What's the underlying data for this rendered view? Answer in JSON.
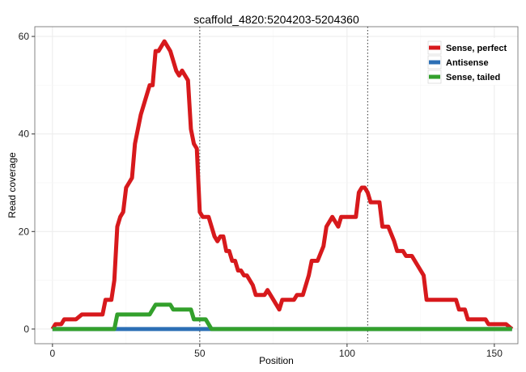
{
  "chart_data": {
    "type": "line",
    "title": "scaffold_4820:5204203-5204360",
    "xlabel": "Position",
    "ylabel": "Read coverage",
    "xlim": [
      -6,
      158
    ],
    "ylim": [
      -3,
      62
    ],
    "xticks": [
      0,
      50,
      100,
      150
    ],
    "yticks": [
      0,
      20,
      40,
      60
    ],
    "grid": true,
    "legend_position": "top-right",
    "vlines": [
      50,
      107
    ],
    "series": [
      {
        "name": "Sense, perfect",
        "color": "#d7191c",
        "points": [
          [
            0,
            0
          ],
          [
            1,
            1
          ],
          [
            3,
            1
          ],
          [
            4,
            2
          ],
          [
            8,
            2
          ],
          [
            10,
            3
          ],
          [
            17,
            3
          ],
          [
            18,
            6
          ],
          [
            20,
            6
          ],
          [
            21,
            10
          ],
          [
            22,
            21
          ],
          [
            23,
            23
          ],
          [
            24,
            24
          ],
          [
            25,
            29
          ],
          [
            26,
            30
          ],
          [
            27,
            31
          ],
          [
            28,
            38
          ],
          [
            30,
            44
          ],
          [
            31,
            46
          ],
          [
            33,
            50
          ],
          [
            34,
            50
          ],
          [
            35,
            57
          ],
          [
            36,
            57
          ],
          [
            38,
            59
          ],
          [
            40,
            57
          ],
          [
            42,
            53
          ],
          [
            43,
            52
          ],
          [
            44,
            53
          ],
          [
            46,
            51
          ],
          [
            47,
            41
          ],
          [
            48,
            38
          ],
          [
            49,
            37
          ],
          [
            50,
            24
          ],
          [
            51,
            23
          ],
          [
            53,
            23
          ],
          [
            55,
            19
          ],
          [
            56,
            18
          ],
          [
            57,
            19
          ],
          [
            58,
            19
          ],
          [
            59,
            16
          ],
          [
            60,
            16
          ],
          [
            61,
            14
          ],
          [
            62,
            14
          ],
          [
            63,
            12
          ],
          [
            64,
            12
          ],
          [
            65,
            11
          ],
          [
            66,
            11
          ],
          [
            68,
            9
          ],
          [
            69,
            7
          ],
          [
            72,
            7
          ],
          [
            73,
            8
          ],
          [
            75,
            6
          ],
          [
            77,
            4
          ],
          [
            78,
            6
          ],
          [
            82,
            6
          ],
          [
            83,
            7
          ],
          [
            85,
            7
          ],
          [
            87,
            11
          ],
          [
            88,
            14
          ],
          [
            90,
            14
          ],
          [
            92,
            17
          ],
          [
            93,
            21
          ],
          [
            95,
            23
          ],
          [
            97,
            21
          ],
          [
            98,
            23
          ],
          [
            103,
            23
          ],
          [
            104,
            28
          ],
          [
            105,
            29
          ],
          [
            106,
            29
          ],
          [
            107,
            28
          ],
          [
            108,
            26
          ],
          [
            111,
            26
          ],
          [
            112,
            21
          ],
          [
            114,
            21
          ],
          [
            116,
            18
          ],
          [
            117,
            16
          ],
          [
            119,
            16
          ],
          [
            120,
            15
          ],
          [
            122,
            15
          ],
          [
            124,
            13
          ],
          [
            126,
            11
          ],
          [
            127,
            6
          ],
          [
            137,
            6
          ],
          [
            138,
            4
          ],
          [
            140,
            4
          ],
          [
            141,
            2
          ],
          [
            147,
            2
          ],
          [
            148,
            1
          ],
          [
            154,
            1
          ],
          [
            156,
            0
          ]
        ]
      },
      {
        "name": "Antisense",
        "color": "#2c6fb5",
        "points": [
          [
            0,
            0
          ],
          [
            22,
            0
          ],
          [
            24,
            0
          ],
          [
            53,
            0
          ],
          [
            156,
            0
          ]
        ]
      },
      {
        "name": "Sense, tailed",
        "color": "#33a02c",
        "points": [
          [
            0,
            0
          ],
          [
            21,
            0
          ],
          [
            22,
            3
          ],
          [
            33,
            3
          ],
          [
            35,
            5
          ],
          [
            40,
            5
          ],
          [
            41,
            4
          ],
          [
            47,
            4
          ],
          [
            48,
            2
          ],
          [
            52,
            2
          ],
          [
            54,
            0
          ],
          [
            156,
            0
          ]
        ]
      }
    ]
  }
}
